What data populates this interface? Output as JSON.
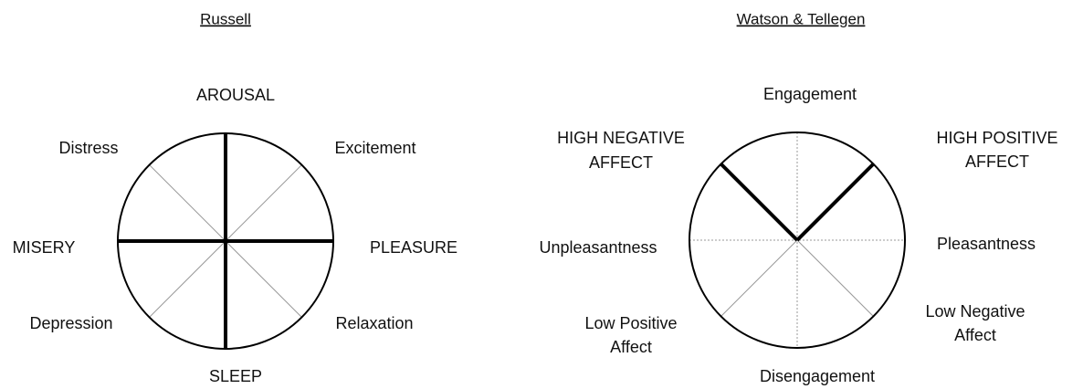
{
  "diagrams": [
    {
      "title": "Russell",
      "labels": [
        "AROUSAL",
        "Distress",
        "Excitement",
        "MISERY",
        "PLEASURE",
        "Depression",
        "Relaxation",
        "SLEEP"
      ]
    },
    {
      "title": "Watson & Tellegen",
      "labels": [
        [
          "Engagement"
        ],
        [
          "HIGH NEGATIVE",
          "AFFECT"
        ],
        [
          "HIGH POSITIVE",
          "AFFECT"
        ],
        [
          "Unpleasantness"
        ],
        [
          "Pleasantness"
        ],
        [
          "Low Positive",
          "Affect"
        ],
        [
          "Low Negative",
          "Affect"
        ],
        [
          "Disengagement"
        ]
      ]
    }
  ]
}
